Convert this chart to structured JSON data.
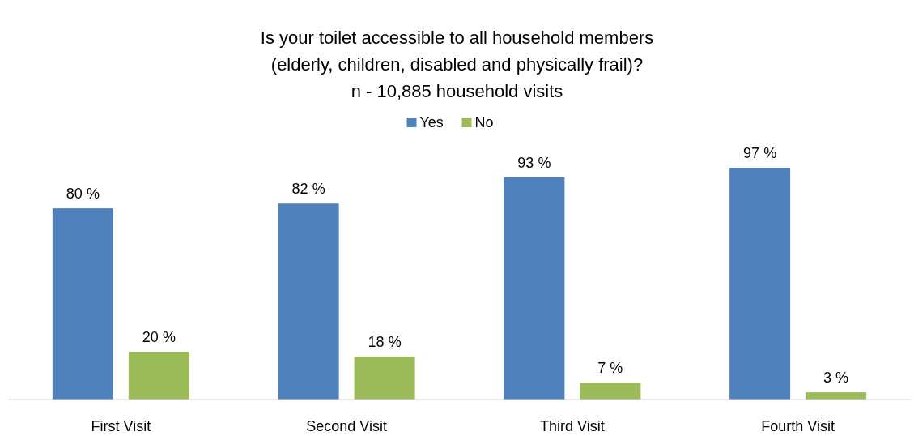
{
  "chart_data": {
    "type": "bar",
    "title": "Is your toilet accessible to all household members\n(elderly, children, disabled and physically frail)?",
    "subtitle": "n - 10,885 household visits",
    "categories": [
      "First Visit",
      "Second Visit",
      "Third Visit",
      "Fourth Visit"
    ],
    "series": [
      {
        "name": "Yes",
        "color": "#4f81bd",
        "values": [
          80,
          82,
          93,
          97
        ],
        "value_labels": [
          "80 %",
          "82 %",
          "93 %",
          "97 %"
        ]
      },
      {
        "name": "No",
        "color": "#9bbb59",
        "values": [
          20,
          18,
          7,
          3
        ],
        "value_labels": [
          "20 %",
          "18 %",
          "7 %",
          "3 %"
        ]
      }
    ],
    "legend": "top",
    "grid": false
  }
}
